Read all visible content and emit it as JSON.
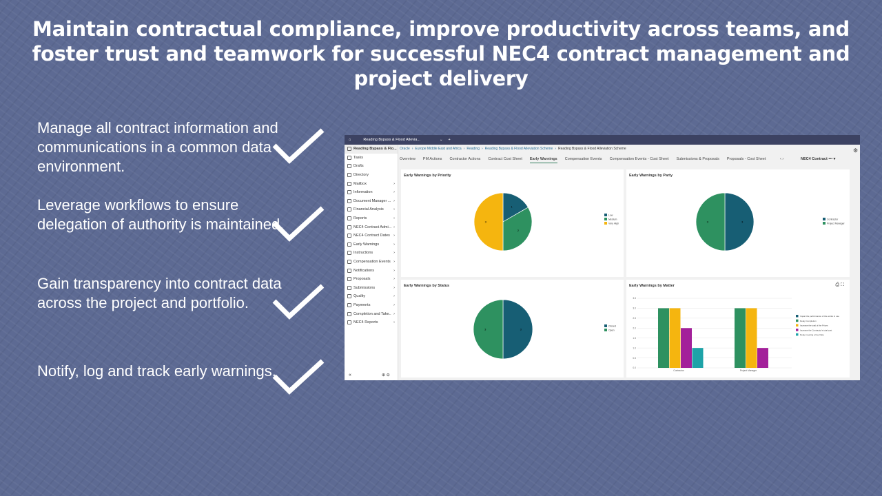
{
  "slide": {
    "title": "Maintain contractual compliance, improve productivity across teams, and foster trust and teamwork for successful NEC4 contract management and project delivery",
    "bullets": [
      "Manage all contract information and communications in a common data environment.",
      "Leverage workflows to ensure delegation of authority is maintained.",
      "Gain transparency into contract data across the project and portfolio.",
      "Notify, log and track early warnings."
    ],
    "check_icon": "checkmark-icon"
  },
  "app": {
    "tab_title": "Reading Bypass & Flood Allevia...",
    "sidebar": {
      "items": [
        {
          "label": "Reading Bypass & Flo...",
          "chev": false
        },
        {
          "label": "Tasks",
          "chev": false
        },
        {
          "label": "Drafts",
          "chev": false
        },
        {
          "label": "Directory",
          "chev": false
        },
        {
          "label": "Mailbox",
          "chev": true
        },
        {
          "label": "Information",
          "chev": true
        },
        {
          "label": "Document Manager ...",
          "chev": true
        },
        {
          "label": "Financial Analysis",
          "chev": true
        },
        {
          "label": "Reports",
          "chev": true
        },
        {
          "label": "NEC4 Contract Admi...",
          "chev": true
        },
        {
          "label": "NEC4 Contract Dates",
          "chev": true
        },
        {
          "label": "Early Warnings",
          "chev": true
        },
        {
          "label": "Instructions",
          "chev": true
        },
        {
          "label": "Compensation Events",
          "chev": true
        },
        {
          "label": "Notifications",
          "chev": true
        },
        {
          "label": "Proposals",
          "chev": true
        },
        {
          "label": "Submissions",
          "chev": true
        },
        {
          "label": "Quality",
          "chev": true
        },
        {
          "label": "Payments",
          "chev": true
        },
        {
          "label": "Completion and Take...",
          "chev": true
        },
        {
          "label": "NEC4 Reports",
          "chev": true
        }
      ],
      "collapse": "«"
    },
    "breadcrumb": [
      "Oracle",
      "Europe Middle East and Africa",
      "Reading",
      "Reading Bypass & Flood Alleviation Scheme",
      "Reading Bypass & Flood Alleviation Scheme"
    ],
    "tabs": [
      {
        "label": "Overview"
      },
      {
        "label": "PM Actions"
      },
      {
        "label": "Contractor Actions"
      },
      {
        "label": "Contract Cost Sheet"
      },
      {
        "label": "Early Warnings",
        "active": true
      },
      {
        "label": "Compensation Events"
      },
      {
        "label": "Compensation Events - Cost Sheet"
      },
      {
        "label": "Submissions & Proposals"
      },
      {
        "label": "Proposals - Cost Sheet"
      }
    ],
    "context": "NEC4 Contract",
    "more": "•••"
  },
  "colors": {
    "dark_teal": "#175e74",
    "green": "#2e9160",
    "yellow": "#f5b50f",
    "purple": "#a3209a",
    "teal": "#1ea3a8"
  },
  "chart_data": [
    {
      "type": "pie",
      "title": "Early Warnings by Priority",
      "categories": [
        "Low",
        "Medium",
        "Very High"
      ],
      "values": [
        1,
        2,
        3
      ],
      "colors": [
        "#175e74",
        "#2e9160",
        "#f5b50f"
      ],
      "legend": "right"
    },
    {
      "type": "pie",
      "title": "Early Warnings by Party",
      "categories": [
        "Contractor",
        "Project Manager"
      ],
      "values": [
        3,
        3
      ],
      "colors": [
        "#175e74",
        "#2e9160"
      ],
      "legend": "right"
    },
    {
      "type": "pie",
      "title": "Early Warnings by Status",
      "categories": [
        "Closed",
        "Open"
      ],
      "values": [
        3,
        3
      ],
      "colors": [
        "#175e74",
        "#2e9160"
      ],
      "legend": "right"
    },
    {
      "type": "bar",
      "title": "Early Warnings by Matter",
      "categories": [
        "Contractor",
        "Project Manager"
      ],
      "series": [
        {
          "name": "Impair the performance of the works in use",
          "values": [
            0,
            0
          ],
          "color": "#175e74"
        },
        {
          "name": "Delay Completion",
          "values": [
            3,
            3
          ],
          "color": "#2e9160"
        },
        {
          "name": "Increase the total of the Prices",
          "values": [
            3,
            3
          ],
          "color": "#f5b50f"
        },
        {
          "name": "Increase the Contractor's total cost",
          "values": [
            2,
            1
          ],
          "color": "#a3209a"
        },
        {
          "name": "Delay meeting a Key Date",
          "values": [
            1,
            0
          ],
          "color": "#1ea3a8"
        }
      ],
      "ylim": [
        0,
        3.5
      ],
      "yticks": [
        "0.0",
        "0.5",
        "1.0",
        "1.5",
        "2.0",
        "2.5",
        "3.0",
        "3.5"
      ],
      "grid": true,
      "legend": "right"
    }
  ]
}
